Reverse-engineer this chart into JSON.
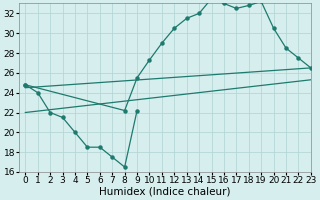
{
  "xlabel": "Humidex (Indice chaleur)",
  "xlim": [
    -0.5,
    23
  ],
  "ylim": [
    16,
    33
  ],
  "xticks": [
    0,
    1,
    2,
    3,
    4,
    5,
    6,
    7,
    8,
    9,
    10,
    11,
    12,
    13,
    14,
    15,
    16,
    17,
    18,
    19,
    20,
    21,
    22,
    23
  ],
  "yticks": [
    16,
    18,
    20,
    22,
    24,
    26,
    28,
    30,
    32
  ],
  "background_color": "#d6eeee",
  "grid_color": "#b0d4d4",
  "line_color": "#1e7a6e",
  "curve_x": [
    0,
    1,
    2,
    3,
    4,
    5,
    6,
    7,
    8,
    9,
    10,
    11,
    12,
    13,
    14,
    15,
    16,
    17,
    18,
    19,
    20,
    21,
    22,
    23
  ],
  "curve_y": [
    24.8,
    null,
    null,
    null,
    null,
    null,
    null,
    null,
    22.2,
    25.5,
    27.3,
    29.0,
    30.5,
    31.5,
    32.0,
    33.5,
    33.0,
    32.5,
    32.8,
    33.2,
    30.5,
    28.5,
    27.5,
    26.5
  ],
  "jagged_x": [
    0,
    1,
    2,
    3,
    4,
    5,
    6,
    7,
    8,
    9
  ],
  "jagged_y": [
    24.8,
    24.0,
    22.0,
    21.5,
    20.0,
    18.5,
    18.5,
    17.5,
    16.5,
    22.2
  ],
  "trend1_x": [
    0,
    23
  ],
  "trend1_y": [
    24.5,
    26.5
  ],
  "trend2_x": [
    0,
    23
  ],
  "trend2_y": [
    22.0,
    25.3
  ],
  "tick_fontsize": 6.5,
  "label_fontsize": 7.5
}
